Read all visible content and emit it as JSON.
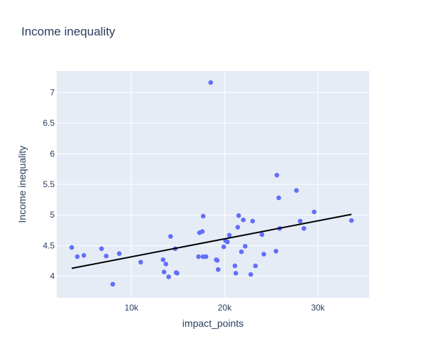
{
  "chart_data": {
    "type": "scatter",
    "title": "Income inequality",
    "xlabel": "impact_points",
    "ylabel": "Income inequality",
    "xlim": [
      2000,
      35500
    ],
    "ylim": [
      3.65,
      7.35
    ],
    "xticks": [
      {
        "value": 10000,
        "label": "10k"
      },
      {
        "value": 20000,
        "label": "20k"
      },
      {
        "value": 30000,
        "label": "30k"
      }
    ],
    "yticks": [
      {
        "value": 4,
        "label": "4"
      },
      {
        "value": 4.5,
        "label": "4.5"
      },
      {
        "value": 5,
        "label": "5"
      },
      {
        "value": 5.5,
        "label": "5.5"
      },
      {
        "value": 6,
        "label": "6"
      },
      {
        "value": 6.5,
        "label": "6.5"
      },
      {
        "value": 7,
        "label": "7"
      }
    ],
    "grid": true,
    "colors": {
      "background": "#e5ecf6",
      "grid": "#ffffff",
      "points": "#636efa",
      "trendline": "#000000"
    },
    "points": [
      {
        "x": 3600,
        "y": 4.47
      },
      {
        "x": 4200,
        "y": 4.32
      },
      {
        "x": 4900,
        "y": 4.34
      },
      {
        "x": 6800,
        "y": 4.45
      },
      {
        "x": 7300,
        "y": 4.33
      },
      {
        "x": 8000,
        "y": 3.87
      },
      {
        "x": 8700,
        "y": 4.37
      },
      {
        "x": 11000,
        "y": 4.23
      },
      {
        "x": 13400,
        "y": 4.27
      },
      {
        "x": 13500,
        "y": 4.07
      },
      {
        "x": 13700,
        "y": 4.2
      },
      {
        "x": 14000,
        "y": 3.99
      },
      {
        "x": 14200,
        "y": 4.65
      },
      {
        "x": 14700,
        "y": 4.45
      },
      {
        "x": 14800,
        "y": 4.06
      },
      {
        "x": 14900,
        "y": 4.05
      },
      {
        "x": 17200,
        "y": 4.32
      },
      {
        "x": 17300,
        "y": 4.71
      },
      {
        "x": 17600,
        "y": 4.73
      },
      {
        "x": 17700,
        "y": 4.32
      },
      {
        "x": 17700,
        "y": 4.98
      },
      {
        "x": 18000,
        "y": 4.32
      },
      {
        "x": 18500,
        "y": 7.16
      },
      {
        "x": 19100,
        "y": 4.27
      },
      {
        "x": 19200,
        "y": 4.26
      },
      {
        "x": 19300,
        "y": 4.11
      },
      {
        "x": 19900,
        "y": 4.48
      },
      {
        "x": 20100,
        "y": 4.58
      },
      {
        "x": 20300,
        "y": 4.56
      },
      {
        "x": 20500,
        "y": 4.67
      },
      {
        "x": 21100,
        "y": 4.17
      },
      {
        "x": 21200,
        "y": 4.05
      },
      {
        "x": 21400,
        "y": 4.8
      },
      {
        "x": 21500,
        "y": 4.99
      },
      {
        "x": 21800,
        "y": 4.4
      },
      {
        "x": 22000,
        "y": 4.92
      },
      {
        "x": 22200,
        "y": 4.49
      },
      {
        "x": 22800,
        "y": 4.03
      },
      {
        "x": 23000,
        "y": 4.9
      },
      {
        "x": 23300,
        "y": 4.17
      },
      {
        "x": 24000,
        "y": 4.68
      },
      {
        "x": 24200,
        "y": 4.36
      },
      {
        "x": 25500,
        "y": 4.41
      },
      {
        "x": 25600,
        "y": 5.65
      },
      {
        "x": 25800,
        "y": 5.28
      },
      {
        "x": 25900,
        "y": 4.78
      },
      {
        "x": 27700,
        "y": 5.4
      },
      {
        "x": 28100,
        "y": 4.9
      },
      {
        "x": 28500,
        "y": 4.78
      },
      {
        "x": 29600,
        "y": 5.05
      },
      {
        "x": 33600,
        "y": 4.91
      }
    ],
    "trendline": {
      "x": [
        3600,
        33600
      ],
      "y": [
        4.13,
        5.01
      ]
    }
  }
}
